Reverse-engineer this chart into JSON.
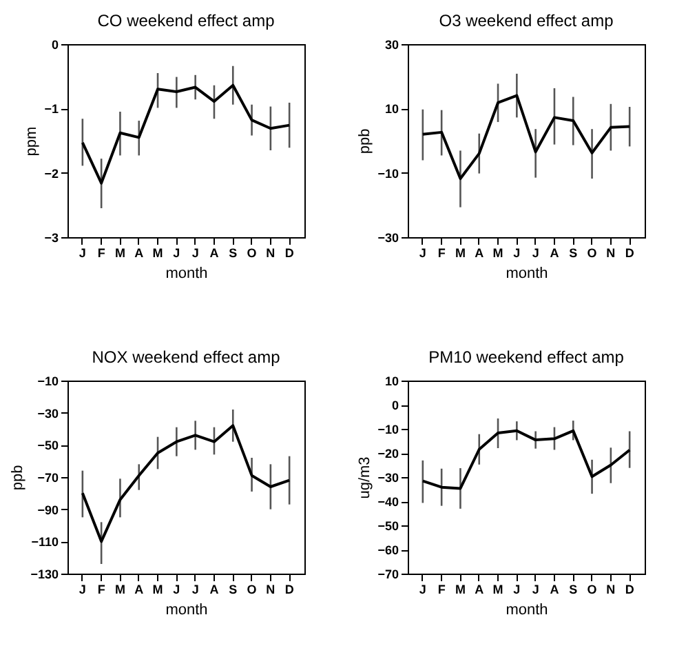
{
  "chart_data": [
    {
      "type": "line",
      "title": "CO    weekend effect amp",
      "xlabel": "month",
      "ylabel": "ppm",
      "categories": [
        "J",
        "F",
        "M",
        "A",
        "M",
        "J",
        "J",
        "A",
        "S",
        "O",
        "N",
        "D"
      ],
      "ylim": [
        -3,
        0
      ],
      "yticks": [
        -3,
        -2,
        -1,
        0
      ],
      "series": [
        {
          "color": "#000000",
          "values": [
            -1.53,
            -2.16,
            -1.38,
            -1.45,
            -0.7,
            -0.74,
            -0.67,
            -0.89,
            -0.64,
            -1.18,
            -1.31,
            -1.26
          ],
          "errors": [
            [
              -1.89,
              -1.16
            ],
            [
              -2.55,
              -1.78
            ],
            [
              -1.73,
              -1.05
            ],
            [
              -1.73,
              -1.19
            ],
            [
              -0.99,
              -0.45
            ],
            [
              -0.99,
              -0.51
            ],
            [
              -0.86,
              -0.48
            ],
            [
              -1.16,
              -0.64
            ],
            [
              -0.94,
              -0.34
            ],
            [
              -1.42,
              -0.94
            ],
            [
              -1.65,
              -0.97
            ],
            [
              -1.61,
              -0.91
            ]
          ]
        }
      ]
    },
    {
      "type": "line",
      "title": "O3 weekend effect amp",
      "xlabel": "month",
      "ylabel": "ppb",
      "categories": [
        "J",
        "F",
        "M",
        "A",
        "M",
        "J",
        "J",
        "A",
        "S",
        "O",
        "N",
        "D"
      ],
      "ylim": [
        -30,
        30
      ],
      "yticks": [
        -30,
        -10,
        10,
        30
      ],
      "series": [
        {
          "color": "#000000",
          "values": [
            2.0,
            2.6,
            -11.8,
            -4.0,
            11.8,
            14.0,
            -3.5,
            7.2,
            6.2,
            -3.8,
            4.1,
            4.4
          ],
          "errors": [
            [
              -6.1,
              9.7
            ],
            [
              -4.6,
              9.5
            ],
            [
              -20.7,
              -3.1
            ],
            [
              -10.2,
              2.2
            ],
            [
              5.8,
              17.7
            ],
            [
              7.2,
              20.8
            ],
            [
              -11.5,
              3.6
            ],
            [
              -1.2,
              16.3
            ],
            [
              -1.4,
              13.6
            ],
            [
              -11.8,
              3.6
            ],
            [
              -3.1,
              11.4
            ],
            [
              -1.8,
              10.5
            ]
          ]
        }
      ]
    },
    {
      "type": "line",
      "title": "NOX   weekend effect amp",
      "xlabel": "month",
      "ylabel": "ppb",
      "categories": [
        "J",
        "F",
        "M",
        "A",
        "M",
        "J",
        "J",
        "A",
        "S",
        "O",
        "N",
        "D"
      ],
      "ylim": [
        -130,
        -10
      ],
      "yticks": [
        -130,
        -110,
        -90,
        -70,
        -50,
        -30,
        -10
      ],
      "series": [
        {
          "color": "#000000",
          "values": [
            -80,
            -110,
            -84,
            -69,
            -55,
            -48,
            -44,
            -48,
            -38,
            -69,
            -76,
            -72
          ],
          "errors": [
            [
              -95,
              -66
            ],
            [
              -124,
              -98
            ],
            [
              -95,
              -71
            ],
            [
              -78,
              -62
            ],
            [
              -65,
              -45
            ],
            [
              -57,
              -39
            ],
            [
              -53,
              -35
            ],
            [
              -56,
              -39
            ],
            [
              -48,
              -28
            ],
            [
              -79,
              -58
            ],
            [
              -90,
              -62
            ],
            [
              -87,
              -57
            ]
          ]
        }
      ]
    },
    {
      "type": "line",
      "title": "PM10 weekend effect amp",
      "xlabel": "month",
      "ylabel": "ug/m3",
      "categories": [
        "J",
        "F",
        "M",
        "A",
        "M",
        "J",
        "J",
        "A",
        "S",
        "O",
        "N",
        "D"
      ],
      "ylim": [
        -70,
        10
      ],
      "yticks": [
        -70,
        -60,
        -50,
        -40,
        -30,
        -20,
        -10,
        0,
        10
      ],
      "series": [
        {
          "color": "#000000",
          "values": [
            -31.6,
            -34.2,
            -34.7,
            -18.5,
            -11.7,
            -10.8,
            -14.6,
            -14.1,
            -10.8,
            -29.8,
            -25.0,
            -18.8
          ],
          "errors": [
            [
              -40.7,
              -23.1
            ],
            [
              -41.9,
              -26.5
            ],
            [
              -43.1,
              -26.3
            ],
            [
              -24.8,
              -12.2
            ],
            [
              -18.0,
              -5.7
            ],
            [
              -14.7,
              -6.9
            ],
            [
              -18.2,
              -11.0
            ],
            [
              -18.7,
              -9.3
            ],
            [
              -14.7,
              -6.6
            ],
            [
              -36.9,
              -22.8
            ],
            [
              -32.5,
              -17.8
            ],
            [
              -26.2,
              -11.0
            ]
          ]
        }
      ]
    }
  ]
}
